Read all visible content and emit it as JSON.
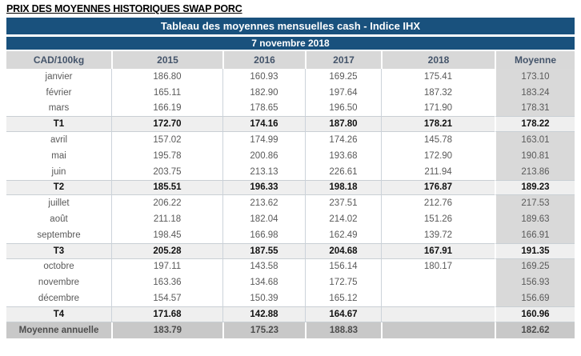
{
  "page_title": "PRIX DES MOYENNES HISTORIQUES SWAP PORC",
  "table": {
    "title": "Tableau des moyennes mensuelles cash - Indice IHX",
    "date": "7 novembre 2018",
    "unit_label": "CAD/100kg",
    "columns": [
      "2015",
      "2016",
      "2017",
      "2018",
      "Moyenne"
    ],
    "rows": [
      {
        "label": "janvier",
        "type": "month",
        "values": [
          "186.80",
          "160.93",
          "169.25",
          "175.41",
          "173.10"
        ]
      },
      {
        "label": "février",
        "type": "month",
        "values": [
          "165.11",
          "182.90",
          "197.64",
          "187.32",
          "183.24"
        ]
      },
      {
        "label": "mars",
        "type": "month",
        "values": [
          "166.19",
          "178.65",
          "196.50",
          "171.90",
          "178.31"
        ]
      },
      {
        "label": "T1",
        "type": "quarter",
        "values": [
          "172.70",
          "174.16",
          "187.80",
          "178.21",
          "178.22"
        ]
      },
      {
        "label": "avril",
        "type": "month",
        "values": [
          "157.02",
          "174.99",
          "174.26",
          "145.78",
          "163.01"
        ]
      },
      {
        "label": "mai",
        "type": "month",
        "values": [
          "195.78",
          "200.86",
          "193.68",
          "172.90",
          "190.81"
        ]
      },
      {
        "label": "juin",
        "type": "month",
        "values": [
          "203.75",
          "213.13",
          "226.61",
          "211.94",
          "213.86"
        ]
      },
      {
        "label": "T2",
        "type": "quarter",
        "values": [
          "185.51",
          "196.33",
          "198.18",
          "176.87",
          "189.23"
        ]
      },
      {
        "label": "juillet",
        "type": "month",
        "values": [
          "206.22",
          "213.62",
          "237.51",
          "212.76",
          "217.53"
        ]
      },
      {
        "label": "août",
        "type": "month",
        "values": [
          "211.18",
          "182.04",
          "214.02",
          "151.26",
          "189.63"
        ]
      },
      {
        "label": "septembre",
        "type": "month",
        "values": [
          "198.45",
          "166.98",
          "162.49",
          "139.72",
          "166.91"
        ]
      },
      {
        "label": "T3",
        "type": "quarter",
        "values": [
          "205.28",
          "187.55",
          "204.68",
          "167.91",
          "191.35"
        ]
      },
      {
        "label": "octobre",
        "type": "month",
        "values": [
          "197.11",
          "143.58",
          "156.14",
          "180.17",
          "169.25"
        ]
      },
      {
        "label": "novembre",
        "type": "month",
        "values": [
          "163.36",
          "134.68",
          "172.75",
          "",
          "156.93"
        ]
      },
      {
        "label": "décembre",
        "type": "month",
        "values": [
          "154.57",
          "150.39",
          "165.12",
          "",
          "156.69"
        ]
      },
      {
        "label": "T4",
        "type": "quarter",
        "values": [
          "171.68",
          "142.88",
          "164.67",
          "",
          "160.96"
        ]
      },
      {
        "label": "Moyenne annuelle",
        "type": "annual",
        "values": [
          "183.79",
          "175.23",
          "188.83",
          "",
          "182.62"
        ]
      }
    ]
  },
  "colors": {
    "header_blue": "#19517D",
    "column_header_gray": "#D8D8D8",
    "moyenne_column_gray": "#D9D9D9",
    "quarter_row_gray": "#EFEFEF",
    "annual_row_gray": "#C8C8C8"
  }
}
